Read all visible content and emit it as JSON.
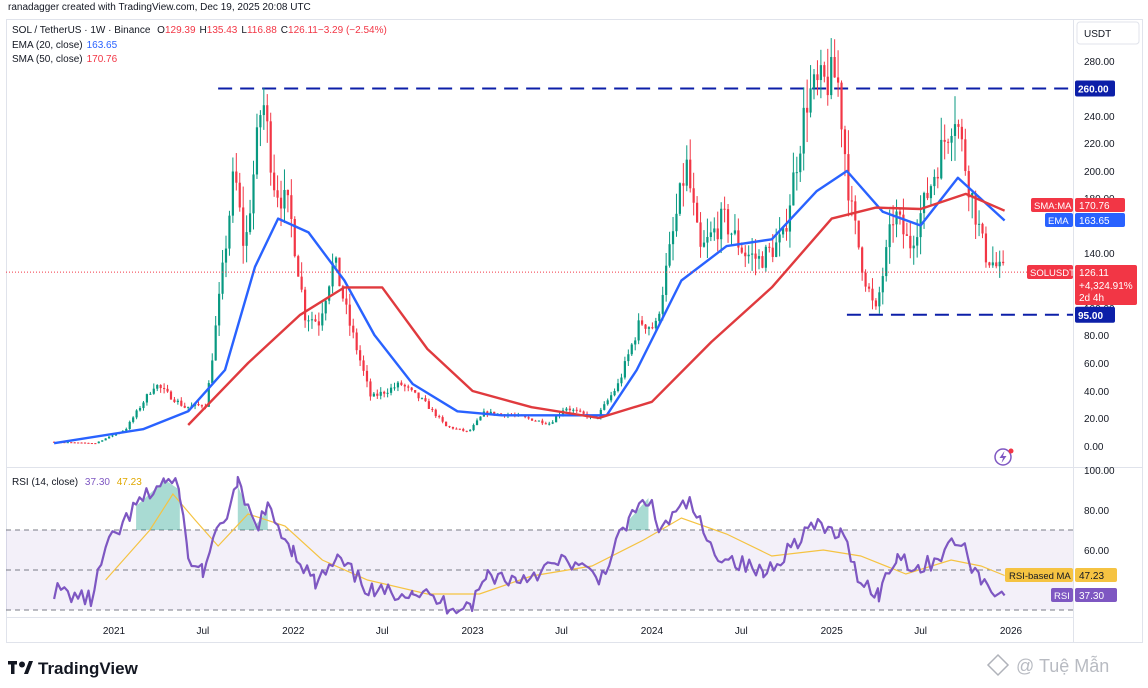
{
  "header": {
    "author_line": "ranadagger created with TradingView.com, Dec 19, 2025 20:08 UTC",
    "symbol": "SOL / TetherUS · 1W · Binance",
    "ohlc": [
      {
        "label": "O",
        "value": "129.39"
      },
      {
        "label": "H",
        "value": "135.43"
      },
      {
        "label": "L",
        "value": "116.88"
      },
      {
        "label": "C",
        "value": "126.11"
      },
      {
        "label": "",
        "value": "−3.29 (−2.54%)"
      }
    ],
    "indicators": [
      {
        "name": "EMA (20, close)",
        "value": "163.65",
        "color": "#2962ff"
      },
      {
        "name": "SMA (50, close)",
        "value": "170.76",
        "color": "#f23645"
      }
    ]
  },
  "rsi_legend": {
    "name": "RSI (14, close)",
    "value": "37.30",
    "ma_value": "47.23"
  },
  "price_axis": {
    "currency": "USDT"
  },
  "colors": {
    "up": "#089981",
    "down": "#f23645",
    "ema": "#2962ff",
    "sma": "#e03a3e",
    "rsi": "#7e57c2",
    "rsi_ma": "#f5c342",
    "level": "#0c1fa8"
  },
  "price_tags": {
    "sma": {
      "label": "SMA:MA",
      "value": "170.76"
    },
    "ema": {
      "label": "EMA",
      "value": "163.65"
    },
    "last": {
      "label": "SOLUSDT",
      "value": "126.11",
      "change": "+4,324.91%",
      "countdown": "2d 4h"
    }
  },
  "rsi_tags": {
    "ma": {
      "label": "RSI-based MA",
      "value": "47.23"
    },
    "rsi": {
      "label": "RSI",
      "value": "37.30"
    }
  },
  "brand": {
    "name": "TradingView"
  },
  "watermark": {
    "text": "@ Tuệ Mẫn"
  },
  "chart_data": [
    {
      "type": "candlestick",
      "title": "SOL / TetherUS · 1W · Binance",
      "x_ticks": [
        "2021",
        "Jul",
        "2022",
        "Jul",
        "2023",
        "Jul",
        "2024",
        "Jul",
        "2025",
        "Jul",
        "2026"
      ],
      "y_ticks": [
        "0.00",
        "20.00",
        "40.00",
        "60.00",
        "80.00",
        "100.00",
        "140.00",
        "180.00",
        "200.00",
        "220.00",
        "240.00",
        "280.00"
      ],
      "y_ticks_raw": [
        0,
        20,
        40,
        60,
        80,
        100,
        140,
        180,
        200,
        220,
        240,
        280
      ],
      "horizontal_levels": [
        {
          "value": 260,
          "label": "260.00",
          "from": "2021-08",
          "to": "2026-01"
        },
        {
          "value": 95,
          "label": "95.00",
          "from": "2025-02",
          "to": "2026-01"
        }
      ],
      "price_path": [
        {
          "date": "2020-09-01",
          "price": 3
        },
        {
          "date": "2020-12-01",
          "price": 2
        },
        {
          "date": "2021-02-01",
          "price": 12
        },
        {
          "date": "2021-04-01",
          "price": 45
        },
        {
          "date": "2021-06-01",
          "price": 28
        },
        {
          "date": "2021-07-15",
          "price": 30
        },
        {
          "date": "2021-08-15",
          "price": 120
        },
        {
          "date": "2021-09-10",
          "price": 200
        },
        {
          "date": "2021-10-01",
          "price": 140
        },
        {
          "date": "2021-11-06",
          "price": 255
        },
        {
          "date": "2021-12-01",
          "price": 190
        },
        {
          "date": "2022-01-01",
          "price": 170
        },
        {
          "date": "2022-02-01",
          "price": 95
        },
        {
          "date": "2022-03-01",
          "price": 90
        },
        {
          "date": "2022-04-01",
          "price": 135
        },
        {
          "date": "2022-05-01",
          "price": 90
        },
        {
          "date": "2022-06-15",
          "price": 35
        },
        {
          "date": "2022-08-15",
          "price": 45
        },
        {
          "date": "2022-10-01",
          "price": 32
        },
        {
          "date": "2022-11-15",
          "price": 14
        },
        {
          "date": "2022-12-31",
          "price": 10
        },
        {
          "date": "2023-02-01",
          "price": 24
        },
        {
          "date": "2023-04-01",
          "price": 22
        },
        {
          "date": "2023-06-15",
          "price": 16
        },
        {
          "date": "2023-07-15",
          "price": 28
        },
        {
          "date": "2023-09-15",
          "price": 19
        },
        {
          "date": "2023-11-01",
          "price": 45
        },
        {
          "date": "2023-12-15",
          "price": 90
        },
        {
          "date": "2024-01-15",
          "price": 85
        },
        {
          "date": "2024-03-18",
          "price": 205
        },
        {
          "date": "2024-04-15",
          "price": 140
        },
        {
          "date": "2024-06-01",
          "price": 165
        },
        {
          "date": "2024-07-15",
          "price": 140
        },
        {
          "date": "2024-08-15",
          "price": 135
        },
        {
          "date": "2024-10-01",
          "price": 150
        },
        {
          "date": "2024-11-20",
          "price": 255
        },
        {
          "date": "2025-01-19",
          "price": 270
        },
        {
          "date": "2025-02-15",
          "price": 175
        },
        {
          "date": "2025-03-15",
          "price": 125
        },
        {
          "date": "2025-04-07",
          "price": 95
        },
        {
          "date": "2025-05-15",
          "price": 170
        },
        {
          "date": "2025-06-15",
          "price": 145
        },
        {
          "date": "2025-07-15",
          "price": 175
        },
        {
          "date": "2025-09-15",
          "price": 245
        },
        {
          "date": "2025-10-15",
          "price": 190
        },
        {
          "date": "2025-11-15",
          "price": 140
        },
        {
          "date": "2025-12-19",
          "price": 126
        }
      ],
      "series": [
        {
          "name": "EMA (20, close)",
          "color": "#2962ff",
          "points": [
            {
              "date": "2020-09-01",
              "value": 2
            },
            {
              "date": "2021-03-01",
              "value": 12
            },
            {
              "date": "2021-06-01",
              "value": 25
            },
            {
              "date": "2021-08-15",
              "value": 55
            },
            {
              "date": "2021-10-15",
              "value": 130
            },
            {
              "date": "2021-12-01",
              "value": 165
            },
            {
              "date": "2022-02-01",
              "value": 155
            },
            {
              "date": "2022-04-15",
              "value": 120
            },
            {
              "date": "2022-06-15",
              "value": 80
            },
            {
              "date": "2022-09-01",
              "value": 45
            },
            {
              "date": "2022-12-01",
              "value": 25
            },
            {
              "date": "2023-03-01",
              "value": 22
            },
            {
              "date": "2023-07-01",
              "value": 22
            },
            {
              "date": "2023-10-01",
              "value": 22
            },
            {
              "date": "2023-12-01",
              "value": 55
            },
            {
              "date": "2024-03-01",
              "value": 120
            },
            {
              "date": "2024-06-01",
              "value": 145
            },
            {
              "date": "2024-09-01",
              "value": 150
            },
            {
              "date": "2024-12-01",
              "value": 185
            },
            {
              "date": "2025-02-01",
              "value": 200
            },
            {
              "date": "2025-04-15",
              "value": 170
            },
            {
              "date": "2025-07-01",
              "value": 160
            },
            {
              "date": "2025-09-15",
              "value": 195
            },
            {
              "date": "2025-12-19",
              "value": 163.65
            }
          ]
        },
        {
          "name": "SMA (50, close)",
          "color": "#e03a3e",
          "points": [
            {
              "date": "2021-06-01",
              "value": 15
            },
            {
              "date": "2021-10-01",
              "value": 60
            },
            {
              "date": "2022-01-15",
              "value": 95
            },
            {
              "date": "2022-04-15",
              "value": 115
            },
            {
              "date": "2022-07-01",
              "value": 115
            },
            {
              "date": "2022-10-01",
              "value": 70
            },
            {
              "date": "2023-01-01",
              "value": 40
            },
            {
              "date": "2023-05-01",
              "value": 28
            },
            {
              "date": "2023-09-15",
              "value": 20
            },
            {
              "date": "2024-01-01",
              "value": 32
            },
            {
              "date": "2024-05-01",
              "value": 75
            },
            {
              "date": "2024-09-01",
              "value": 115
            },
            {
              "date": "2025-01-01",
              "value": 165
            },
            {
              "date": "2025-04-01",
              "value": 173
            },
            {
              "date": "2025-07-01",
              "value": 172
            },
            {
              "date": "2025-10-01",
              "value": 183
            },
            {
              "date": "2025-12-19",
              "value": 170.76
            }
          ]
        }
      ]
    },
    {
      "type": "line",
      "title": "RSI (14, close)",
      "y_ticks": [
        "60.00",
        "80.00",
        "100.00"
      ],
      "y_ticks_raw": [
        60,
        80,
        100
      ],
      "bands": {
        "upper": 70,
        "middle": 50,
        "lower": 30
      },
      "series": [
        {
          "name": "RSI",
          "color": "#7e57c2",
          "points": [
            {
              "date": "2020-09-01",
              "value": 40
            },
            {
              "date": "2020-11-15",
              "value": 35
            },
            {
              "date": "2020-12-15",
              "value": 60
            },
            {
              "date": "2021-02-15",
              "value": 82
            },
            {
              "date": "2021-04-15",
              "value": 95
            },
            {
              "date": "2021-05-15",
              "value": 90
            },
            {
              "date": "2021-06-01",
              "value": 55
            },
            {
              "date": "2021-07-01",
              "value": 50
            },
            {
              "date": "2021-09-10",
              "value": 92
            },
            {
              "date": "2021-10-15",
              "value": 72
            },
            {
              "date": "2021-11-10",
              "value": 80
            },
            {
              "date": "2022-01-01",
              "value": 60
            },
            {
              "date": "2022-02-15",
              "value": 43
            },
            {
              "date": "2022-04-01",
              "value": 55
            },
            {
              "date": "2022-06-15",
              "value": 38
            },
            {
              "date": "2022-09-01",
              "value": 40
            },
            {
              "date": "2022-11-15",
              "value": 32
            },
            {
              "date": "2022-12-31",
              "value": 33
            },
            {
              "date": "2023-02-01",
              "value": 48
            },
            {
              "date": "2023-04-01",
              "value": 45
            },
            {
              "date": "2023-07-15",
              "value": 55
            },
            {
              "date": "2023-09-15",
              "value": 45
            },
            {
              "date": "2023-11-15",
              "value": 75
            },
            {
              "date": "2023-12-25",
              "value": 86
            },
            {
              "date": "2024-01-15",
              "value": 70
            },
            {
              "date": "2024-03-18",
              "value": 84
            },
            {
              "date": "2024-05-01",
              "value": 60
            },
            {
              "date": "2024-08-15",
              "value": 48
            },
            {
              "date": "2024-11-20",
              "value": 72
            },
            {
              "date": "2025-01-19",
              "value": 68
            },
            {
              "date": "2025-03-01",
              "value": 45
            },
            {
              "date": "2025-04-07",
              "value": 38
            },
            {
              "date": "2025-05-15",
              "value": 58
            },
            {
              "date": "2025-07-01",
              "value": 50
            },
            {
              "date": "2025-09-15",
              "value": 65
            },
            {
              "date": "2025-11-01",
              "value": 45
            },
            {
              "date": "2025-12-19",
              "value": 37.3
            }
          ]
        },
        {
          "name": "RSI-based MA",
          "color": "#f5c342",
          "points": [
            {
              "date": "2020-12-15",
              "value": 45
            },
            {
              "date": "2021-03-15",
              "value": 70
            },
            {
              "date": "2021-05-01",
              "value": 88
            },
            {
              "date": "2021-06-15",
              "value": 75
            },
            {
              "date": "2021-08-01",
              "value": 62
            },
            {
              "date": "2021-10-01",
              "value": 78
            },
            {
              "date": "2021-12-15",
              "value": 72
            },
            {
              "date": "2022-03-01",
              "value": 55
            },
            {
              "date": "2022-06-01",
              "value": 45
            },
            {
              "date": "2022-10-01",
              "value": 38
            },
            {
              "date": "2023-01-15",
              "value": 38
            },
            {
              "date": "2023-05-01",
              "value": 47
            },
            {
              "date": "2023-09-01",
              "value": 52
            },
            {
              "date": "2023-12-15",
              "value": 65
            },
            {
              "date": "2024-03-01",
              "value": 76
            },
            {
              "date": "2024-06-01",
              "value": 68
            },
            {
              "date": "2024-09-01",
              "value": 57
            },
            {
              "date": "2024-12-15",
              "value": 60
            },
            {
              "date": "2025-03-01",
              "value": 57
            },
            {
              "date": "2025-06-01",
              "value": 48
            },
            {
              "date": "2025-09-01",
              "value": 55
            },
            {
              "date": "2025-11-01",
              "value": 52
            },
            {
              "date": "2025-12-19",
              "value": 47.23
            }
          ]
        }
      ]
    }
  ]
}
